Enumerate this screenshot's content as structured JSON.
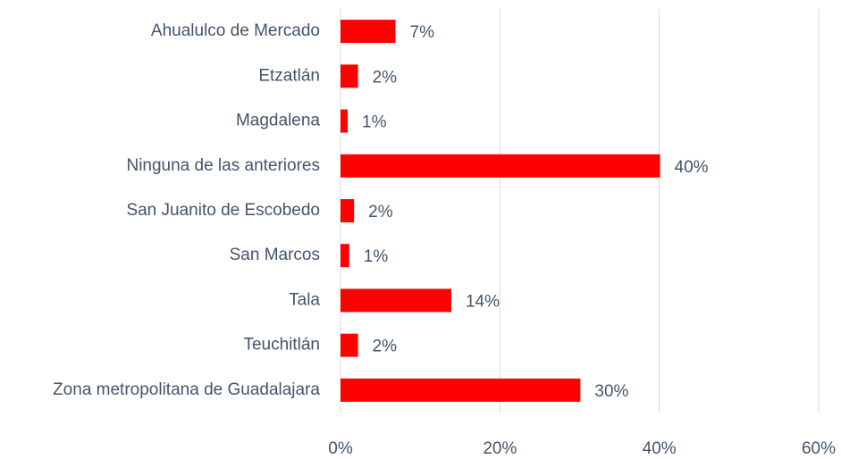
{
  "chart_data": {
    "type": "barh",
    "categories": [
      "Ahualulco de Mercado",
      "Etzatlán",
      "Magdalena",
      "Ninguna de las anteriores",
      "San Juanito de Escobedo",
      "San Marcos",
      "Tala",
      "Teuchitlán",
      "Zona metropolitana de Guadalajara"
    ],
    "values": [
      6.9,
      2.2,
      0.9,
      40.1,
      1.7,
      1.1,
      13.9,
      2.2,
      30.1
    ],
    "value_labels": [
      "7%",
      "2%",
      "1%",
      "40%",
      "2%",
      "1%",
      "14%",
      "2%",
      "30%"
    ],
    "color": "#ff0000",
    "xlim": [
      0,
      60
    ],
    "xticks": [
      {
        "value": 0,
        "label": "0%"
      },
      {
        "value": 20,
        "label": "20%"
      },
      {
        "value": 40,
        "label": "40%"
      },
      {
        "value": 60,
        "label": "60%"
      }
    ],
    "grid": true
  }
}
